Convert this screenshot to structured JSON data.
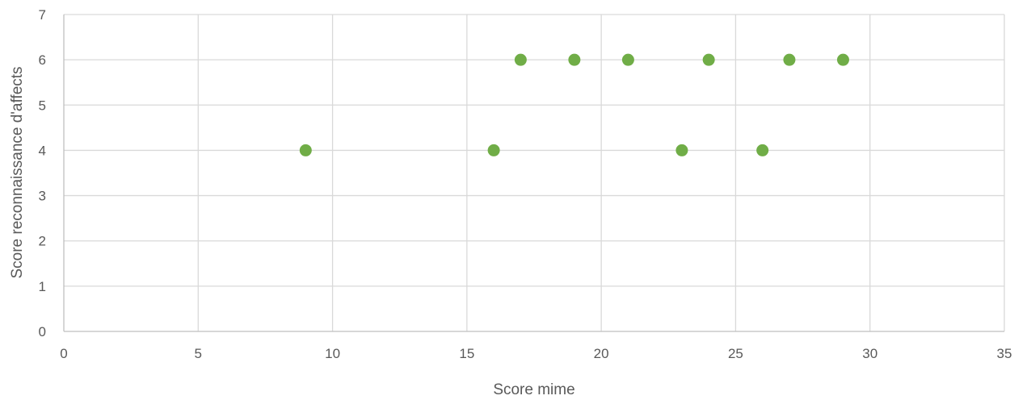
{
  "chart_data": {
    "type": "scatter",
    "title": "",
    "xlabel": "Score mime",
    "ylabel": "Score reconnaissance d'affects",
    "xlim": [
      0,
      35
    ],
    "ylim": [
      0,
      7
    ],
    "x_ticks": [
      0,
      5,
      10,
      15,
      20,
      25,
      30,
      35
    ],
    "y_ticks": [
      0,
      1,
      2,
      3,
      4,
      5,
      6,
      7
    ],
    "x_tick_labels": [
      "0",
      "5",
      "10",
      "15",
      "20",
      "25",
      "30",
      "35"
    ],
    "y_tick_labels": [
      "0",
      "1",
      "2",
      "3",
      "4",
      "5",
      "6",
      "7"
    ],
    "grid": true,
    "legend": "none",
    "marker_color": "#70ad47",
    "series": [
      {
        "points": [
          {
            "x": 9,
            "y": 4
          },
          {
            "x": 16,
            "y": 4
          },
          {
            "x": 17,
            "y": 6
          },
          {
            "x": 19,
            "y": 6
          },
          {
            "x": 21,
            "y": 6
          },
          {
            "x": 23,
            "y": 4
          },
          {
            "x": 24,
            "y": 6
          },
          {
            "x": 26,
            "y": 4
          },
          {
            "x": 27,
            "y": 6
          },
          {
            "x": 29,
            "y": 6
          }
        ]
      }
    ]
  }
}
